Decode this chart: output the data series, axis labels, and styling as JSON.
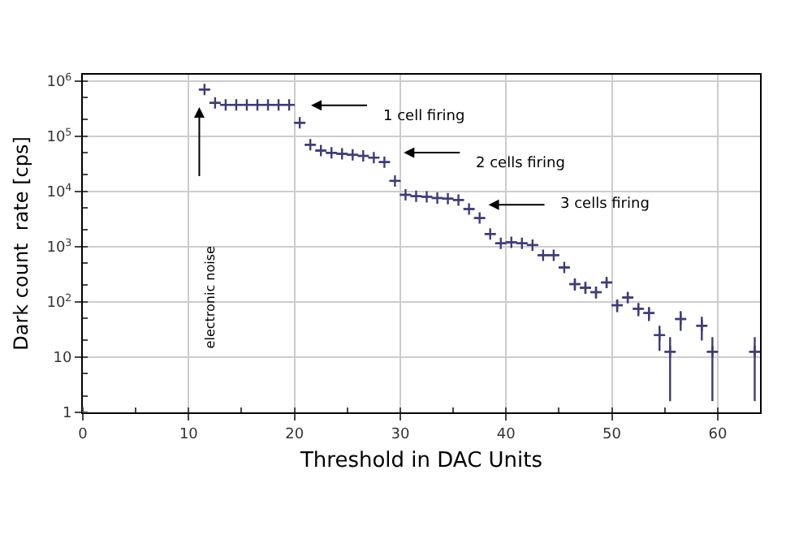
{
  "chart_data": {
    "type": "scatter",
    "xlabel": "Threshold in DAC Units",
    "ylabel": "Dark count  rate [cps]",
    "x": [
      11.5,
      12.5,
      13.5,
      14.5,
      15.5,
      16.5,
      17.5,
      18.5,
      19.5,
      20.5,
      21.5,
      22.5,
      23.5,
      24.5,
      25.5,
      26.5,
      27.5,
      28.5,
      29.5,
      30.5,
      31.5,
      32.5,
      33.5,
      34.5,
      35.5,
      36.5,
      37.5,
      38.5,
      39.5,
      40.5,
      41.5,
      42.5,
      43.5,
      44.5,
      45.5,
      46.5,
      47.5,
      48.5,
      49.5,
      50.5,
      51.5,
      52.5,
      53.5,
      54.5,
      55.5,
      56.5,
      58.5,
      59.5,
      63.5
    ],
    "series": [
      {
        "color": "#3c3c7a",
        "values": [
          700000,
          400000,
          370000,
          370000,
          370000,
          370000,
          370000,
          370000,
          370000,
          175000,
          70000,
          55000,
          50000,
          48000,
          46000,
          44000,
          41000,
          34000,
          15500,
          8700,
          8200,
          8000,
          7600,
          7400,
          7000,
          4800,
          3300,
          1700,
          1150,
          1200,
          1150,
          1070,
          700,
          700,
          420,
          210,
          180,
          150,
          225,
          87,
          120,
          75,
          63,
          25,
          12.5,
          49,
          37,
          12.5,
          12.5
        ],
        "xerrors": [
          0.5,
          0.5,
          0.5,
          0.5,
          0.5,
          0.5,
          0.5,
          0.5,
          0.5,
          0.5,
          0.5,
          0.5,
          0.5,
          0.5,
          0.5,
          0.5,
          0.5,
          0.5,
          0.5,
          0.5,
          0.5,
          0.5,
          0.5,
          0.5,
          0.5,
          0.5,
          0.5,
          0.5,
          0.5,
          0.5,
          0.5,
          0.5,
          0.5,
          0.5,
          0.5,
          0.5,
          0.5,
          0.5,
          0.5,
          0.5,
          0.5,
          0.5,
          0.5,
          0.5,
          0.5,
          0.5,
          0.5,
          0.5,
          0.5
        ],
        "errors": [
          null,
          null,
          null,
          null,
          null,
          null,
          null,
          null,
          null,
          null,
          null,
          null,
          null,
          null,
          null,
          null,
          null,
          null,
          null,
          null,
          null,
          null,
          null,
          null,
          null,
          null,
          null,
          null,
          null,
          null,
          null,
          null,
          null,
          null,
          null,
          [
            160,
            260
          ],
          [
            140,
            230
          ],
          [
            115,
            190
          ],
          [
            180,
            270
          ],
          [
            65,
            110
          ],
          [
            95,
            145
          ],
          [
            55,
            95
          ],
          [
            45,
            80
          ],
          [
            13,
            37
          ],
          [
            1.6,
            23
          ],
          [
            30,
            68
          ],
          [
            20,
            54
          ],
          [
            1.6,
            23
          ],
          [
            1.6,
            23
          ]
        ]
      }
    ],
    "marker": "cross",
    "log": true,
    "grid": true,
    "xlim": [
      0,
      64
    ],
    "xticks": [
      0,
      10,
      20,
      30,
      40,
      50,
      60
    ],
    "ylim": [
      1,
      1300000
    ],
    "yticks": [
      1,
      10,
      {
        "value": 100,
        "label": "10$^{2}$"
      },
      {
        "value": 1000,
        "label": "10$^{3}$"
      },
      {
        "value": 10000,
        "label": "10$^{4}$"
      },
      {
        "value": 100000,
        "label": "10$^{5}$"
      },
      {
        "value": 1000000,
        "label": "10$^{6}$"
      }
    ],
    "annotations": [
      "1 cell firing",
      "2 cells firing",
      "3 cells firing",
      "electronic noise"
    ]
  }
}
